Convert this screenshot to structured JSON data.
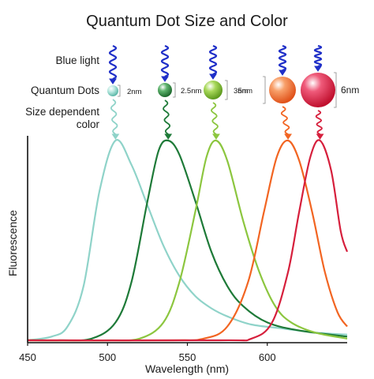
{
  "title": "Quantum Dot Size and Color",
  "labels": {
    "blue_light": "Blue light",
    "quantum_dots": "Quantum Dots",
    "size_dependent_1": "Size dependent",
    "size_dependent_2": "color"
  },
  "colors": {
    "excitation": "#1f2fc8",
    "axis": "#111111"
  },
  "chart_data": {
    "type": "line",
    "title": "Quantum Dot Size and Color",
    "xlabel": "Wavelength (nm)",
    "ylabel": "Fluorescence",
    "xlim": [
      450,
      650
    ],
    "ylim": [
      0,
      1
    ],
    "x_ticks": [
      450,
      500,
      550,
      600
    ],
    "grid": false,
    "series": [
      {
        "dot_size": "2nm",
        "color": "#8fd3c9",
        "peak_nm": 505,
        "values": [
          [
            450,
            0.01
          ],
          [
            465,
            0.03
          ],
          [
            475,
            0.08
          ],
          [
            485,
            0.28
          ],
          [
            495,
            0.75
          ],
          [
            505,
            1.0
          ],
          [
            515,
            0.88
          ],
          [
            525,
            0.68
          ],
          [
            535,
            0.48
          ],
          [
            545,
            0.33
          ],
          [
            555,
            0.23
          ],
          [
            565,
            0.17
          ],
          [
            575,
            0.13
          ],
          [
            590,
            0.09
          ],
          [
            610,
            0.07
          ],
          [
            630,
            0.05
          ],
          [
            650,
            0.04
          ]
        ]
      },
      {
        "dot_size": "2.5nm",
        "color": "#1e7a38",
        "peak_nm": 538,
        "values": [
          [
            450,
            0.0
          ],
          [
            470,
            0.0
          ],
          [
            490,
            0.02
          ],
          [
            505,
            0.1
          ],
          [
            515,
            0.3
          ],
          [
            525,
            0.7
          ],
          [
            532,
            0.95
          ],
          [
            538,
            1.0
          ],
          [
            545,
            0.93
          ],
          [
            555,
            0.7
          ],
          [
            565,
            0.45
          ],
          [
            575,
            0.28
          ],
          [
            585,
            0.18
          ],
          [
            600,
            0.1
          ],
          [
            620,
            0.06
          ],
          [
            650,
            0.03
          ]
        ]
      },
      {
        "dot_size": "3nm",
        "color": "#8cc63f",
        "peak_nm": 568,
        "values": [
          [
            450,
            0.0
          ],
          [
            500,
            0.0
          ],
          [
            520,
            0.02
          ],
          [
            535,
            0.1
          ],
          [
            545,
            0.3
          ],
          [
            555,
            0.65
          ],
          [
            562,
            0.92
          ],
          [
            568,
            1.0
          ],
          [
            575,
            0.9
          ],
          [
            585,
            0.6
          ],
          [
            595,
            0.35
          ],
          [
            605,
            0.18
          ],
          [
            615,
            0.1
          ],
          [
            630,
            0.05
          ],
          [
            650,
            0.02
          ]
        ]
      },
      {
        "dot_size": "5nm",
        "color": "#f26522",
        "peak_nm": 613,
        "values": [
          [
            450,
            0.0
          ],
          [
            540,
            0.0
          ],
          [
            560,
            0.02
          ],
          [
            575,
            0.08
          ],
          [
            588,
            0.3
          ],
          [
            598,
            0.65
          ],
          [
            606,
            0.92
          ],
          [
            613,
            1.0
          ],
          [
            620,
            0.9
          ],
          [
            628,
            0.65
          ],
          [
            636,
            0.35
          ],
          [
            644,
            0.15
          ],
          [
            650,
            0.08
          ]
        ]
      },
      {
        "dot_size": "6nm",
        "color": "#d61f3c",
        "peak_nm": 633,
        "values": [
          [
            450,
            0.0
          ],
          [
            570,
            0.0
          ],
          [
            590,
            0.02
          ],
          [
            603,
            0.1
          ],
          [
            613,
            0.35
          ],
          [
            620,
            0.65
          ],
          [
            627,
            0.92
          ],
          [
            633,
            1.0
          ],
          [
            640,
            0.85
          ],
          [
            646,
            0.55
          ],
          [
            650,
            0.45
          ]
        ]
      }
    ]
  }
}
